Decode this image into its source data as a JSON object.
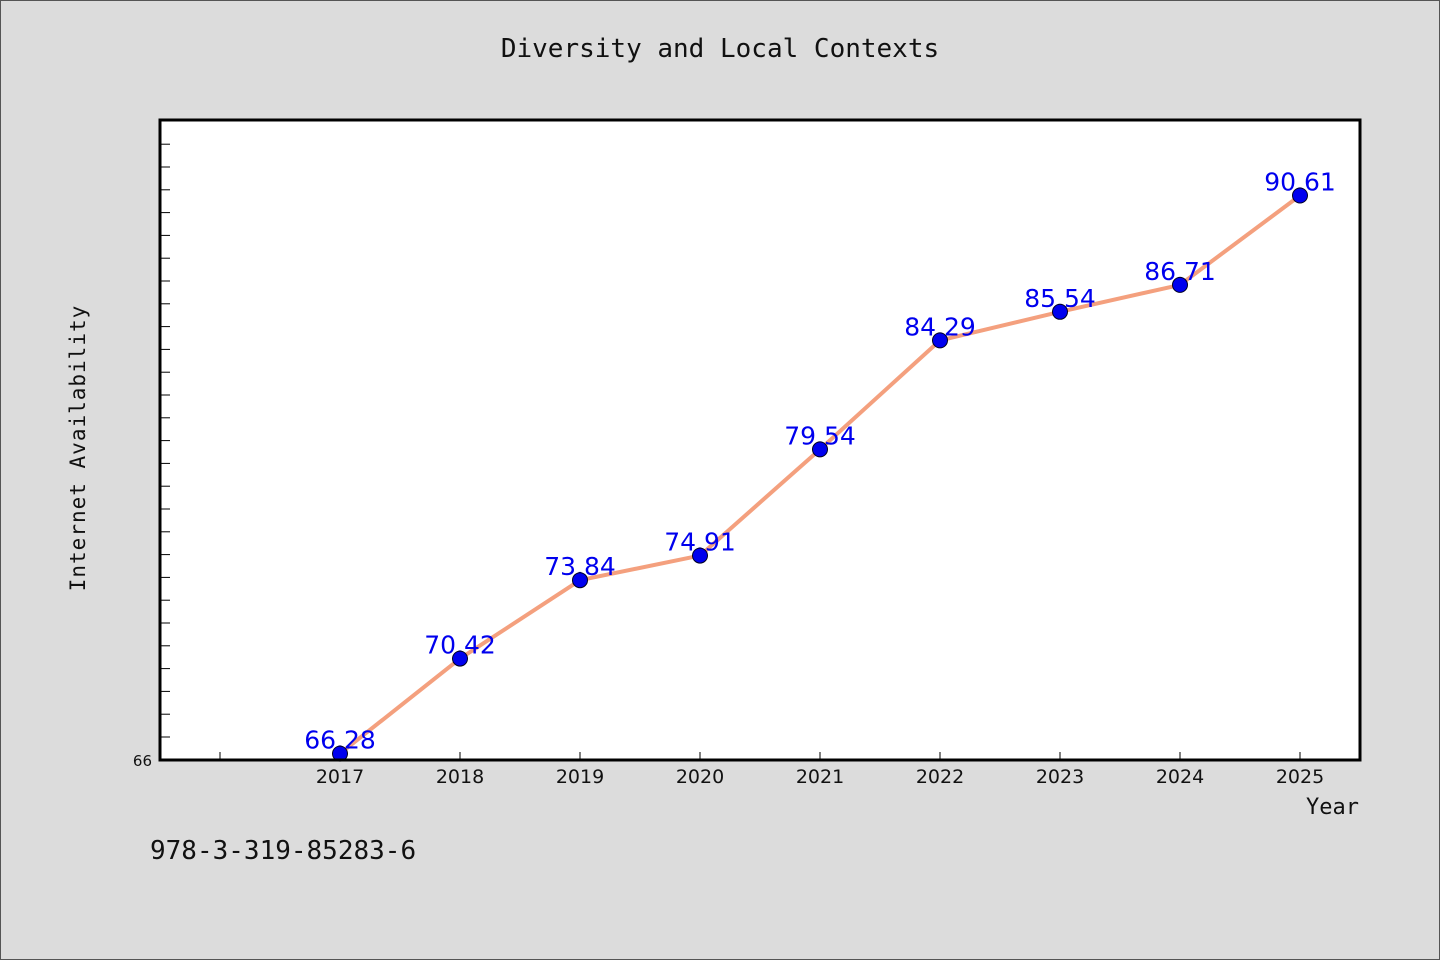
{
  "chart_data": {
    "type": "line",
    "title": "Diversity and Local Contexts",
    "xlabel": "Year",
    "ylabel": "Internet Availability",
    "categories": [
      "2017",
      "2018",
      "2019",
      "2020",
      "2021",
      "2022",
      "2023",
      "2024",
      "2025"
    ],
    "series": [
      {
        "values": [
          66.28,
          70.42,
          73.84,
          74.91,
          79.54,
          84.29,
          85.54,
          86.71,
          90.61
        ],
        "data_labels": [
          "66.28",
          "70.42",
          "73.84",
          "74.91",
          "79.54",
          "84.29",
          "85.54",
          "86.71",
          "90.61"
        ],
        "line_color": "#f4a07e",
        "marker_color": "#0000ee",
        "label_color": "#0000ee"
      }
    ],
    "ylim": [
      66,
      93.9
    ],
    "y_tick_labels": [
      "66"
    ],
    "grid": false,
    "legend": "none"
  },
  "footer": {
    "code": "978-3-319-85283-6"
  },
  "colors": {
    "background": "#dcdcdc",
    "plot_background": "#ffffff",
    "axis": "#000000"
  }
}
